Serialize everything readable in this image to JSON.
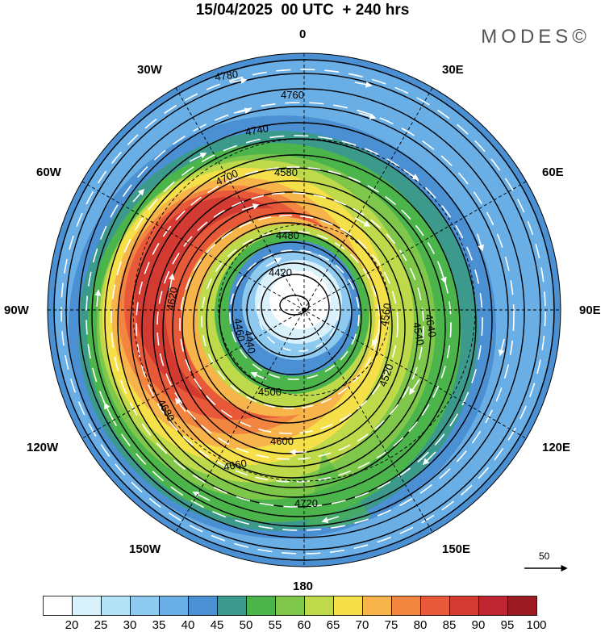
{
  "header": {
    "title": "15/04/2025  00 UTC  + 240 hrs",
    "brand": "MODES©"
  },
  "longitude_labels": {
    "n": "0",
    "e30": "30E",
    "e60": "60E",
    "e90": "90E",
    "e120": "120E",
    "e150": "150E",
    "s": "180",
    "w150": "150W",
    "w120": "120W",
    "w90": "90W",
    "w60": "60W",
    "w30": "30W"
  },
  "wind_reference": {
    "label": "50"
  },
  "colorbar": {
    "colors": [
      "#ffffff",
      "#d9f1fb",
      "#b3e3f7",
      "#8ec9ef",
      "#6aaee6",
      "#4a90d2",
      "#3b9a8c",
      "#4bb54b",
      "#7fc74a",
      "#bed94a",
      "#f6e04a",
      "#f7b44a",
      "#f28540",
      "#e8593a",
      "#d33a32",
      "#be2530",
      "#9c1b22"
    ],
    "labels": [
      "20",
      "25",
      "30",
      "35",
      "40",
      "45",
      "50",
      "55",
      "60",
      "65",
      "70",
      "75",
      "80",
      "85",
      "90",
      "95",
      "100"
    ]
  },
  "contours": [
    {
      "label": "4420"
    },
    {
      "label": "4440"
    },
    {
      "label": "4460"
    },
    {
      "label": "4480"
    },
    {
      "label": "4500"
    },
    {
      "label": "4520"
    },
    {
      "label": "4540"
    },
    {
      "label": "4560"
    },
    {
      "label": "4580"
    },
    {
      "label": "4600"
    },
    {
      "label": "4620"
    },
    {
      "label": "4640"
    },
    {
      "label": "4660"
    },
    {
      "label": "4680"
    },
    {
      "label": "4700"
    },
    {
      "label": "4720"
    },
    {
      "label": "4740"
    },
    {
      "label": "4760"
    },
    {
      "label": "4780"
    }
  ]
}
